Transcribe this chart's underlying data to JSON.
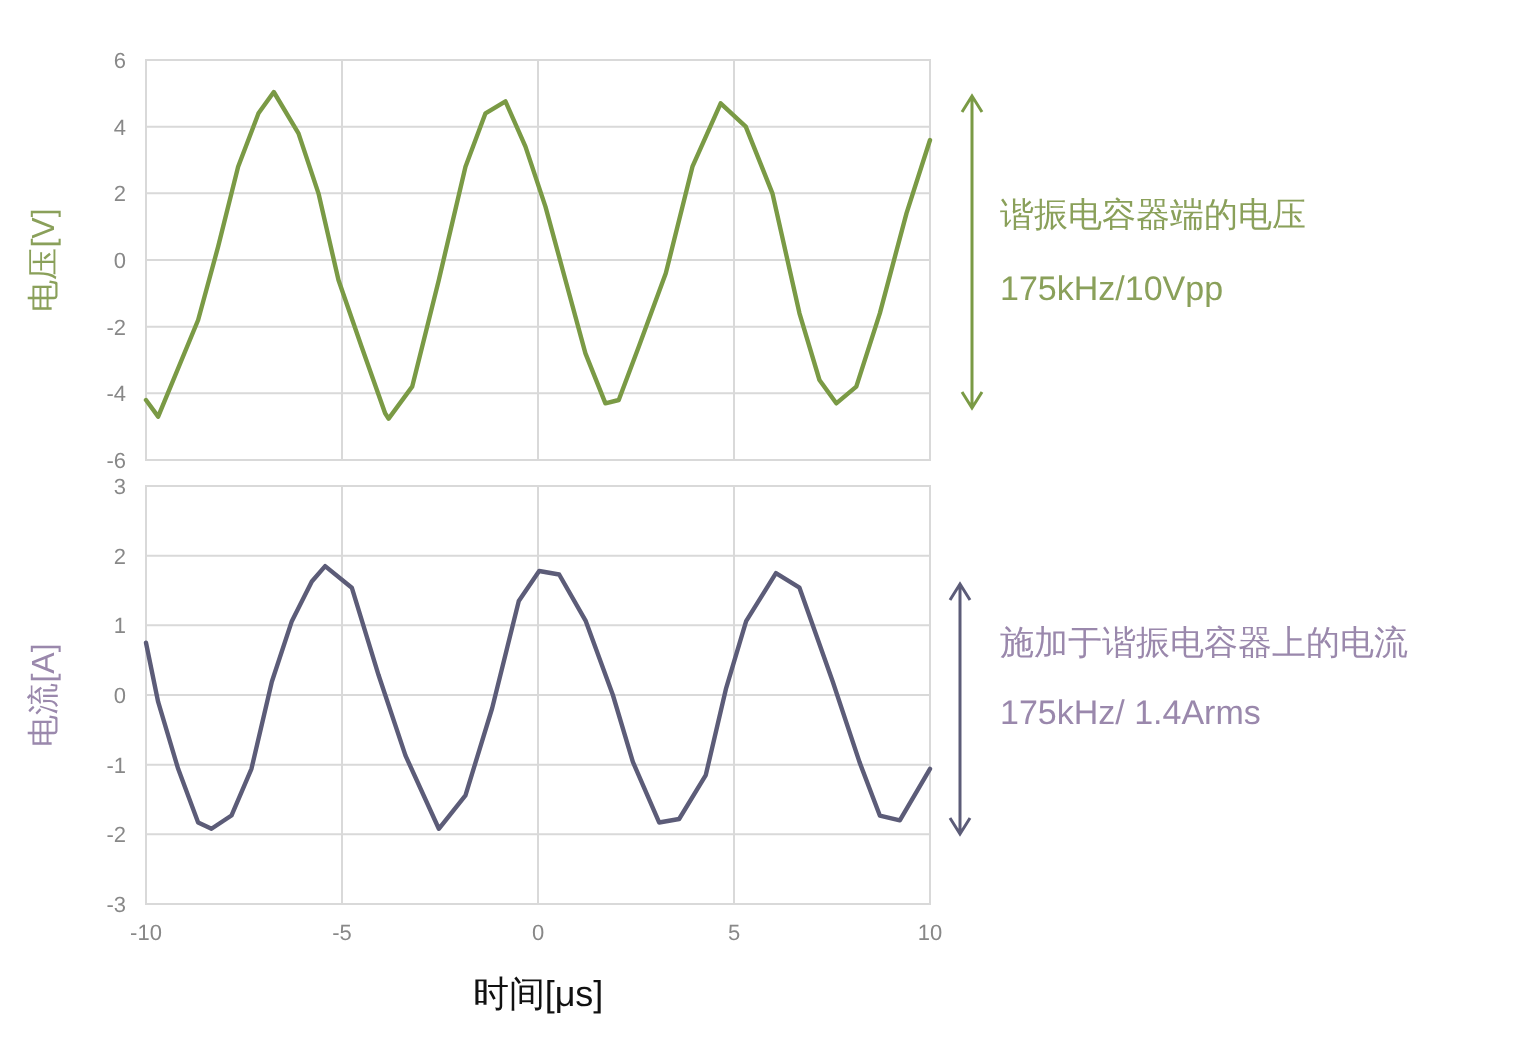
{
  "chart_data": [
    {
      "type": "line",
      "ylabel": "电压[V]",
      "xlim": [
        -10,
        10
      ],
      "xticks": [
        -10,
        -5,
        0,
        5,
        10
      ],
      "ylim": [
        -6,
        6
      ],
      "yticks": [
        -6,
        -4,
        -2,
        0,
        2,
        4,
        6
      ],
      "grid": true,
      "tick_labels": "y",
      "annotations": [
        "谐振电容器端的电压",
        "175kHz/10Vpp"
      ],
      "series": [
        {
          "color": "#7a9a45",
          "x": [
            -10,
            -9.69,
            -8.67,
            -8.16,
            -7.65,
            -7.13,
            -6.74,
            -6.11,
            -5.6,
            -5.09,
            -4.5,
            -3.9,
            -3.81,
            -3.21,
            -2.53,
            -1.85,
            -1.34,
            -0.83,
            -0.32,
            0.19,
            0.7,
            1.21,
            1.72,
            2.06,
            2.57,
            3.26,
            3.94,
            4.66,
            5.3,
            5.98,
            6.67,
            7.18,
            7.61,
            8.12,
            8.72,
            9.4,
            10
          ],
          "values": [
            -4.2,
            -4.7,
            -1.8,
            0.4,
            2.8,
            4.4,
            5.04,
            3.8,
            2.0,
            -0.6,
            -2.6,
            -4.6,
            -4.76,
            -3.8,
            -0.6,
            2.8,
            4.4,
            4.76,
            3.4,
            1.6,
            -0.6,
            -2.8,
            -4.3,
            -4.2,
            -2.6,
            -0.4,
            2.8,
            4.7,
            4.0,
            2.0,
            -1.6,
            -3.6,
            -4.3,
            -3.8,
            -1.6,
            1.4,
            3.6
          ]
        }
      ]
    },
    {
      "type": "line",
      "ylabel": "电流[A]",
      "xlabel": "时间[μs]",
      "xlim": [
        -10,
        10
      ],
      "xticks": [
        -10,
        -5,
        0,
        5,
        10
      ],
      "ylim": [
        -3,
        3
      ],
      "yticks": [
        -3,
        -2,
        -1,
        0,
        1,
        2,
        3
      ],
      "grid": true,
      "annotations": [
        "施加于谐振电容器上的电流",
        "175kHz/ 1.4Arms"
      ],
      "series": [
        {
          "color": "#5c5c78",
          "x": [
            -10,
            -9.69,
            -9.18,
            -8.67,
            -8.33,
            -7.82,
            -7.31,
            -6.79,
            -6.28,
            -5.77,
            -5.43,
            -4.75,
            -4.07,
            -3.38,
            -2.53,
            -1.85,
            -1.17,
            -0.49,
            0.03,
            0.54,
            1.22,
            1.91,
            2.42,
            3.09,
            3.6,
            4.28,
            4.8,
            5.31,
            6.07,
            6.67,
            7.52,
            8.2,
            8.72,
            9.23,
            10
          ],
          "values": [
            0.75,
            -0.1,
            -1.06,
            -1.83,
            -1.92,
            -1.73,
            -1.06,
            0.19,
            1.06,
            1.63,
            1.85,
            1.54,
            0.29,
            -0.87,
            -1.92,
            -1.44,
            -0.19,
            1.35,
            1.78,
            1.73,
            1.06,
            0,
            -0.96,
            -1.83,
            -1.78,
            -1.15,
            0.1,
            1.06,
            1.75,
            1.54,
            0.19,
            -0.96,
            -1.73,
            -1.8,
            -1.06
          ]
        }
      ]
    }
  ]
}
